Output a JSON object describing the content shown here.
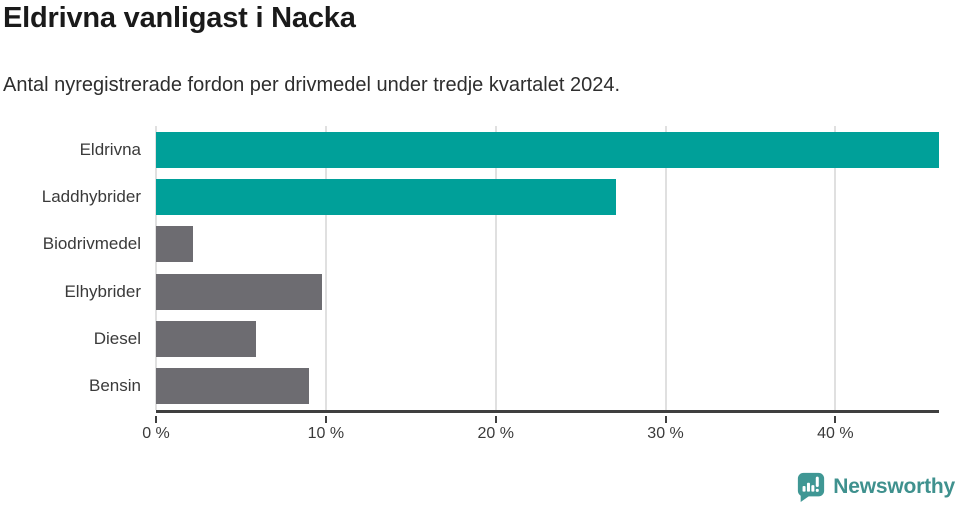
{
  "header": {
    "title": "Eldrivna vanligast i Nacka",
    "subtitle": "Antal nyregistrerade fordon per drivmedel under tredje kvartalet 2024."
  },
  "chart_data": {
    "type": "bar",
    "orientation": "horizontal",
    "title": "Eldrivna vanligast i Nacka",
    "subtitle": "Antal nyregistrerade fordon per drivmedel under tredje kvartalet 2024.",
    "categories": [
      "Eldrivna",
      "Laddhybrider",
      "Biodrivmedel",
      "Elhybrider",
      "Diesel",
      "Bensin"
    ],
    "values": [
      46.1,
      27.1,
      2.2,
      9.8,
      5.9,
      9.0
    ],
    "unit": "%",
    "bar_colors": [
      "#00a099",
      "#00a099",
      "#6d6c71",
      "#6d6c71",
      "#6d6c71",
      "#6d6c71"
    ],
    "xlabel": "",
    "ylabel": "",
    "xlim": [
      0,
      46.1
    ],
    "x_ticks": [
      0,
      10,
      20,
      30,
      40
    ],
    "x_tick_labels": [
      "0 %",
      "10 %",
      "20 %",
      "30 %",
      "40 %"
    ],
    "grid": true,
    "legend": false
  },
  "colors": {
    "accent_teal": "#00a099",
    "bar_gray": "#6d6c71",
    "gridline": "#e0e0e0",
    "axis_line": "#3f3f3f",
    "title_text": "#1a1a1a",
    "body_text": "#3a3a3a",
    "logo_teal": "#3f9794"
  },
  "footer": {
    "brand": "Newsworthy",
    "logo_icon": "newsworthy-bar-chart-bubble-icon"
  }
}
